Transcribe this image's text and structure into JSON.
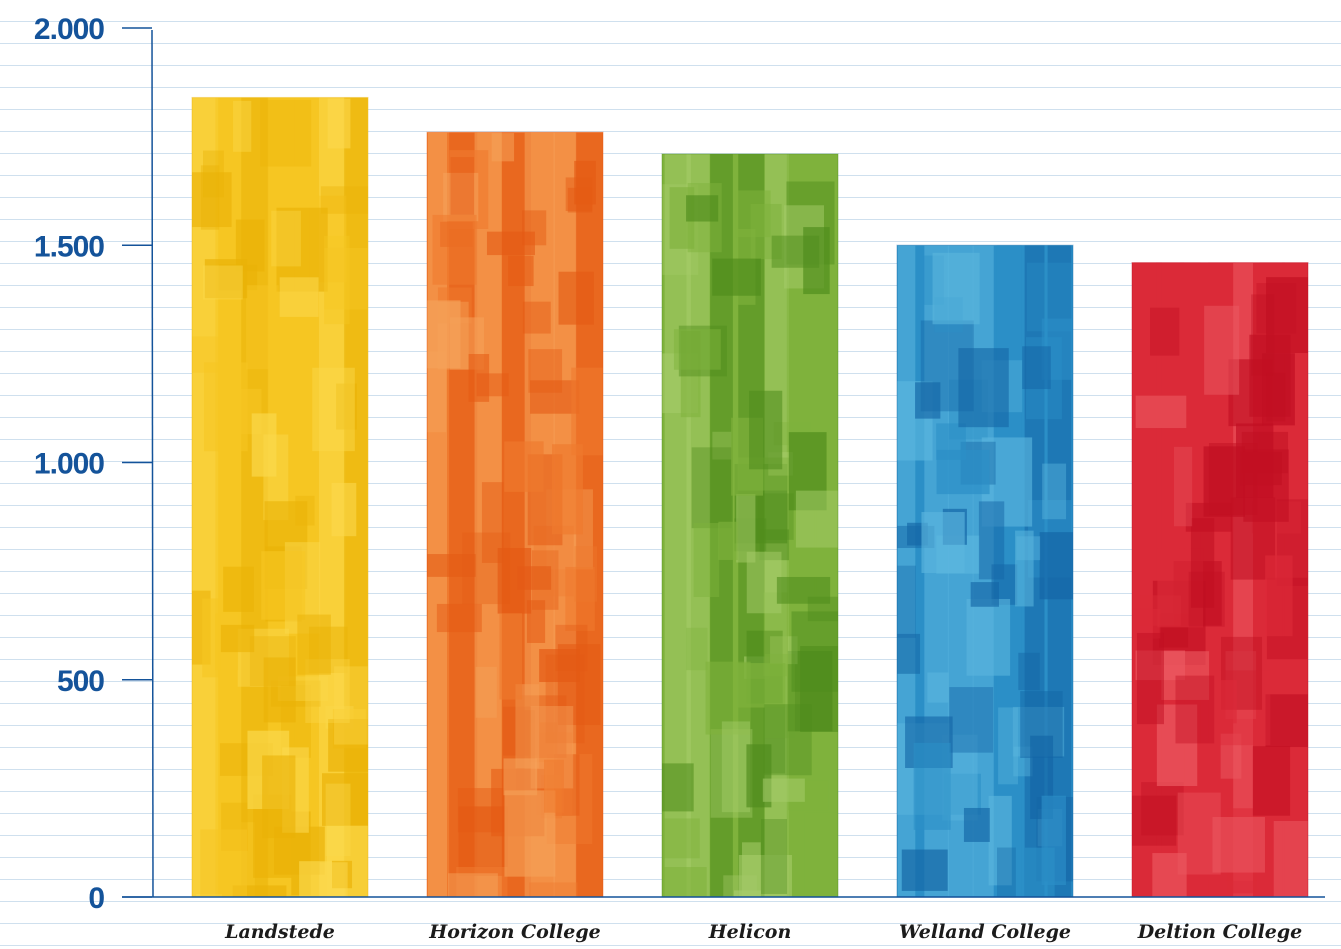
{
  "chart_data": {
    "type": "bar",
    "title": "",
    "xlabel": "",
    "ylabel": "",
    "categories": [
      "Landstede",
      "Horizon College",
      "Helicon",
      "Welland College",
      "Deltion College"
    ],
    "values": [
      1840,
      1760,
      1710,
      1500,
      1460
    ],
    "ylim": [
      0,
      2000
    ],
    "yticks": [
      0,
      500,
      1000,
      1500,
      2000
    ],
    "ytick_labels": [
      "0",
      "500",
      "1.000",
      "1.500",
      "2.000"
    ],
    "grid": false,
    "legend": "none",
    "colors": [
      {
        "light": "#fbd94d",
        "mid": "#f6c623",
        "dark": "#eab207"
      },
      {
        "light": "#f5a25a",
        "mid": "#ef7a2e",
        "dark": "#e45a14"
      },
      {
        "light": "#a6cc6a",
        "mid": "#7fb23c",
        "dark": "#4f8c1c"
      },
      {
        "light": "#5bb6de",
        "mid": "#2b8fc7",
        "dark": "#1466a6"
      },
      {
        "light": "#ec5a62",
        "mid": "#db2a38",
        "dark": "#c10f22"
      }
    ],
    "axis_color": "#14539a"
  }
}
